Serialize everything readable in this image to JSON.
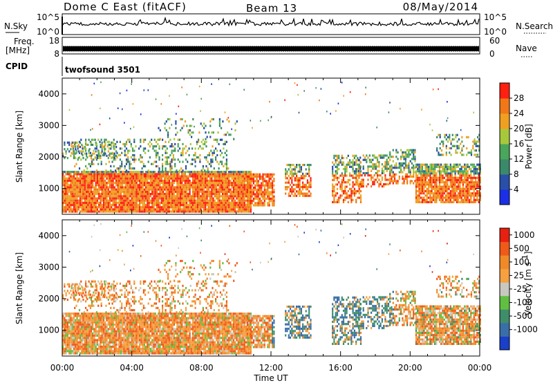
{
  "header": {
    "title": "Dome C East (fitACF)",
    "beam": "Beam 13",
    "date": "08/May/2014"
  },
  "chart_data": [
    {
      "type": "line",
      "panel": "noise",
      "left_label": "N.Sky",
      "right_label": "N.Search",
      "left_ticks": [
        "10^5",
        "10^0"
      ],
      "right_ticks": [
        "10^5",
        "10^0"
      ]
    },
    {
      "type": "line",
      "panel": "frequency",
      "left_label": "Freq.",
      "left_unit": "[MHz]",
      "right_label": "Nave",
      "left_ticks": [
        18,
        8
      ],
      "right_ticks": [
        60,
        0
      ]
    },
    {
      "type": "table",
      "panel": "cpid",
      "left_label": "CPID",
      "value": "twofsound 3501"
    },
    {
      "type": "heatmap",
      "panel": "power",
      "ylabel": "Slant Range [km]",
      "xlabel": "",
      "xlim": [
        0,
        24
      ],
      "ylim": [
        180,
        4500
      ],
      "yticks": [
        1000,
        2000,
        3000,
        4000
      ],
      "colorbar_label": "Power [dB]",
      "colorbar_ticks": [
        "4",
        "8",
        "12",
        "16",
        "20",
        "24",
        "28"
      ],
      "colorbar_range": [
        0,
        32
      ],
      "colors": [
        "#1b2fe6",
        "#2a4fa8",
        "#3a8a6a",
        "#4aa65a",
        "#a8c83c",
        "#f0a020",
        "#f07818",
        "#ff2010"
      ]
    },
    {
      "type": "heatmap",
      "panel": "velocity",
      "ylabel": "Slant Range [km]",
      "xlabel": "Time UT",
      "xlim": [
        0,
        24
      ],
      "ylim": [
        180,
        4500
      ],
      "yticks": [
        1000,
        2000,
        3000,
        4000
      ],
      "xticks": [
        "00:00",
        "04:00",
        "08:00",
        "12:00",
        "16:00",
        "20:00",
        "00:00"
      ],
      "colorbar_label": "Velocity [m s",
      "colorbar_unit_sup": "-1",
      "colorbar_unit_close": "]",
      "colorbar_ticks": [
        "1000",
        "500",
        "100",
        "25",
        "-25",
        "-100",
        "-500",
        "-1000"
      ],
      "colors": [
        "#1a3fc8",
        "#3a6ea8",
        "#3e8e6a",
        "#60bf40",
        "#c8c8c0",
        "#f6a040",
        "#f08a28",
        "#f05a18",
        "#e82010"
      ]
    }
  ]
}
